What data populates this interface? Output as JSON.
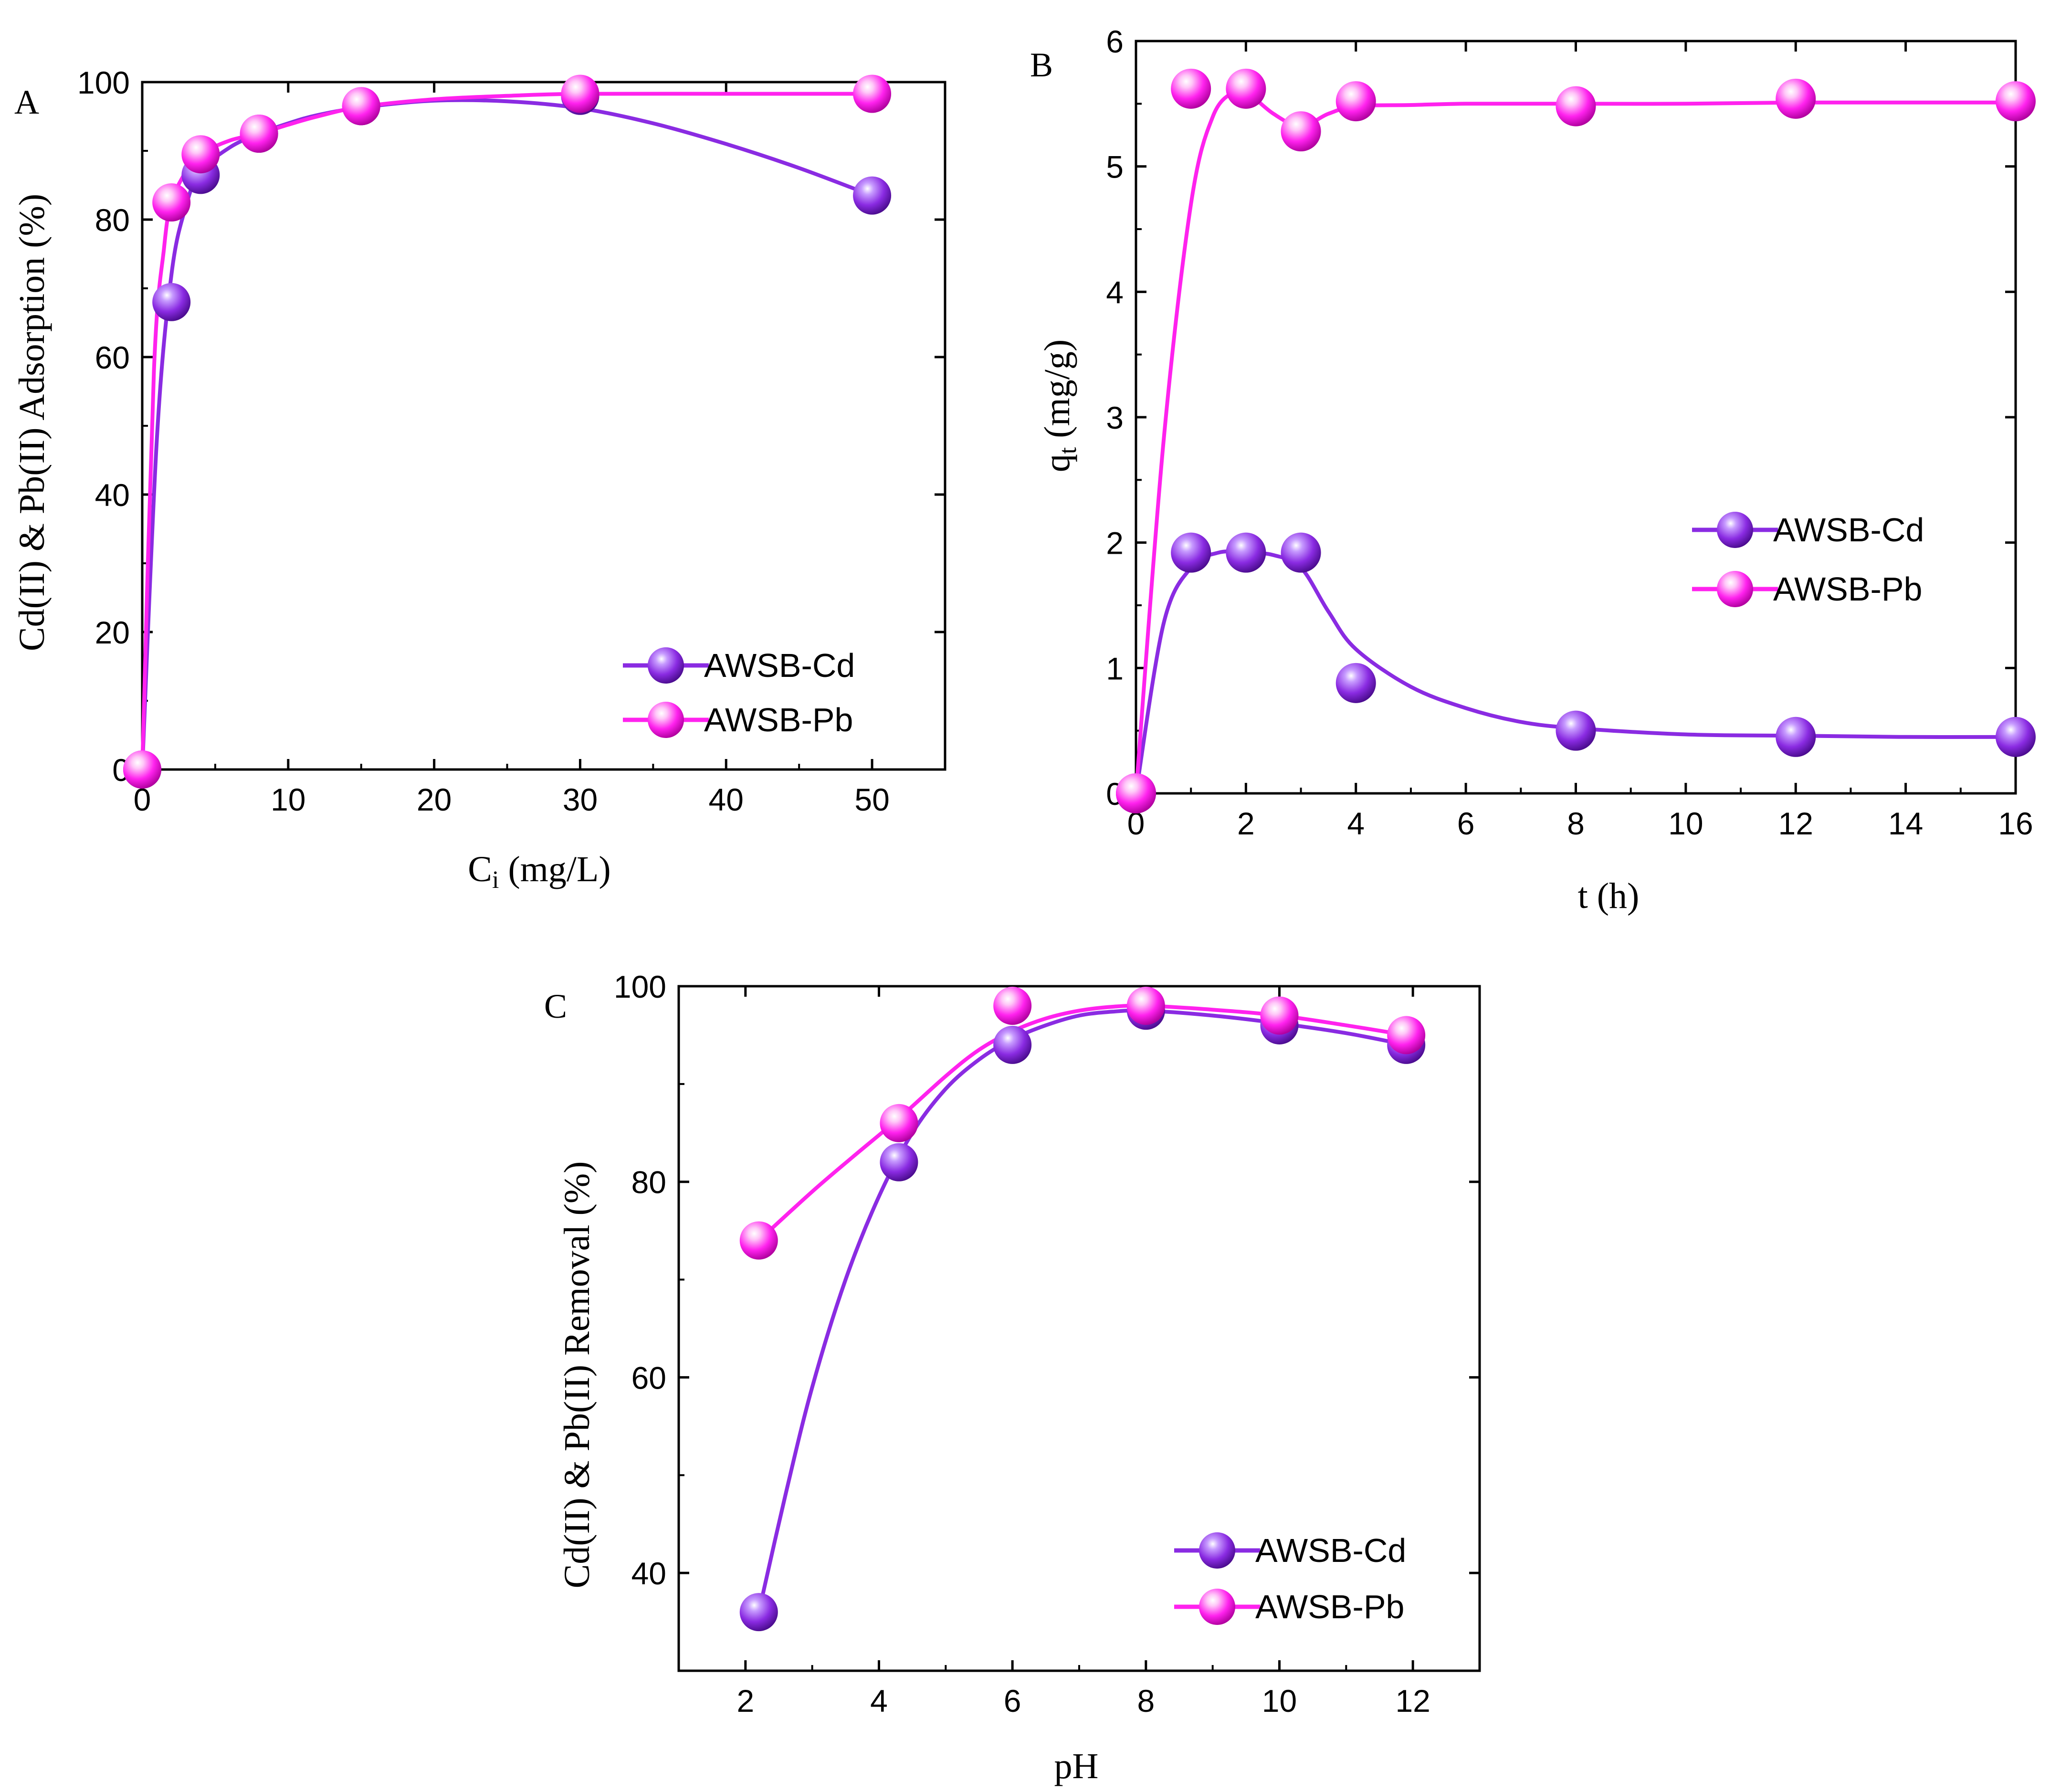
{
  "colors": {
    "cd": "#8a2be2",
    "cd_dark": "#4b0c8f",
    "cd_light": "#c79bff",
    "pb": "#ff22ee",
    "pb_dark": "#b0009e",
    "pb_light": "#ffc8f8",
    "axis": "#000000"
  },
  "chart_data": [
    {
      "panel": "A",
      "type": "scatter",
      "xlabel_main": "C",
      "xlabel_sub": "i",
      "xlabel_tail": " (mg/L)",
      "ylabel": "Cd(II) & Pb(II) Adsorption (%)",
      "xlim": [
        0,
        55
      ],
      "ylim": [
        0,
        100
      ],
      "xticks": [
        0,
        10,
        20,
        30,
        40,
        50
      ],
      "yticks": [
        0,
        20,
        40,
        60,
        80,
        100
      ],
      "legend_position": "bottom-right",
      "series": [
        {
          "name": "AWSB-Cd",
          "color_key": "cd",
          "x": [
            0,
            2,
            4,
            8,
            15,
            30,
            50
          ],
          "y": [
            0,
            68,
            86.5,
            92.5,
            96.5,
            98,
            83.5
          ],
          "curve_x": [
            0,
            1,
            2,
            3,
            4,
            6,
            8,
            10,
            12,
            15,
            20,
            25,
            30,
            35,
            40,
            45,
            50
          ],
          "curve_y": [
            0,
            48,
            72,
            82,
            87,
            90.5,
            92.5,
            94,
            95.2,
            96.3,
            97.3,
            97.2,
            96.2,
            94,
            91,
            87.5,
            83.5
          ]
        },
        {
          "name": "AWSB-Pb",
          "color_key": "pb",
          "x": [
            0,
            2,
            4,
            8,
            15,
            30,
            50
          ],
          "y": [
            0,
            82.5,
            89.5,
            92.5,
            96.5,
            98.3,
            98.3
          ],
          "curve_x": [
            0,
            0.8,
            1.5,
            2,
            3,
            4,
            6,
            8,
            10,
            12,
            15,
            20,
            25,
            30,
            40,
            50
          ],
          "curve_y": [
            0,
            58,
            76,
            82.5,
            87,
            89.5,
            91.5,
            92.5,
            93.8,
            95,
            96.4,
            97.5,
            98,
            98.3,
            98.3,
            98.3
          ]
        }
      ]
    },
    {
      "panel": "B",
      "type": "scatter",
      "xlabel": "t (h)",
      "ylabel_main": "q",
      "ylabel_sub": "t",
      "ylabel_tail": " (mg/g)",
      "xlim": [
        0,
        16
      ],
      "ylim": [
        0,
        6
      ],
      "xticks": [
        0,
        2,
        4,
        6,
        8,
        10,
        12,
        14,
        16
      ],
      "yticks": [
        0,
        1,
        2,
        3,
        4,
        5,
        6
      ],
      "legend_position": "right",
      "series": [
        {
          "name": "AWSB-Cd",
          "color_key": "cd",
          "x": [
            0,
            1,
            2,
            3,
            4,
            8,
            12,
            16
          ],
          "y": [
            0,
            1.92,
            1.92,
            1.92,
            0.88,
            0.5,
            0.45,
            0.45
          ],
          "curve_x": [
            0,
            0.5,
            1,
            1.5,
            2,
            2.5,
            3,
            3.5,
            4,
            5,
            6,
            7,
            8,
            10,
            12,
            14,
            16
          ],
          "curve_y": [
            0,
            1.35,
            1.8,
            1.92,
            1.92,
            1.9,
            1.8,
            1.45,
            1.15,
            0.85,
            0.68,
            0.57,
            0.52,
            0.47,
            0.46,
            0.45,
            0.45
          ]
        },
        {
          "name": "AWSB-Pb",
          "color_key": "pb",
          "x": [
            0,
            1,
            2,
            3,
            4,
            8,
            12,
            16
          ],
          "y": [
            0,
            5.62,
            5.62,
            5.28,
            5.52,
            5.48,
            5.54,
            5.52
          ],
          "curve_x": [
            0,
            0.5,
            1,
            1.4,
            1.8,
            2,
            2.5,
            3,
            3.5,
            4,
            5,
            6,
            8,
            10,
            12,
            14,
            16
          ],
          "curve_y": [
            0,
            2.8,
            4.7,
            5.4,
            5.6,
            5.6,
            5.42,
            5.32,
            5.42,
            5.48,
            5.49,
            5.5,
            5.5,
            5.5,
            5.51,
            5.51,
            5.51
          ]
        }
      ]
    },
    {
      "panel": "C",
      "type": "scatter",
      "xlabel": "pH",
      "ylabel": "Cd(II) & Pb(II) Removal (%)",
      "xlim": [
        1,
        13
      ],
      "ylim": [
        30,
        100
      ],
      "xticks": [
        2,
        4,
        6,
        8,
        10,
        12
      ],
      "yticks": [
        40,
        60,
        80,
        100
      ],
      "legend_position": "bottom-right",
      "series": [
        {
          "name": "AWSB-Cd",
          "color_key": "cd",
          "x": [
            2.2,
            4.3,
            6,
            8,
            10,
            11.9
          ],
          "y": [
            36,
            82,
            94,
            97.5,
            96,
            94
          ],
          "curve_x": [
            2.2,
            2.6,
            3,
            3.5,
            4,
            4.5,
            5,
            5.5,
            6,
            6.5,
            7,
            7.5,
            8,
            9,
            10,
            11,
            11.9
          ],
          "curve_y": [
            36,
            48,
            59,
            70,
            78.5,
            85,
            89.5,
            92.5,
            94.6,
            96,
            97,
            97.4,
            97.5,
            97,
            96.2,
            95.2,
            94
          ]
        },
        {
          "name": "AWSB-Pb",
          "color_key": "pb",
          "x": [
            2.2,
            4.3,
            6,
            8,
            10,
            11.9
          ],
          "y": [
            74,
            86,
            98,
            98,
            97,
            95
          ],
          "curve_x": [
            2.2,
            3,
            3.6,
            4.3,
            5,
            5.5,
            6,
            6.5,
            7,
            7.5,
            8,
            9,
            10,
            11,
            11.9
          ],
          "curve_y": [
            74,
            79,
            82.5,
            86.5,
            90.8,
            93.5,
            95.4,
            96.7,
            97.5,
            97.9,
            98,
            97.6,
            97,
            96,
            95
          ]
        }
      ]
    }
  ]
}
